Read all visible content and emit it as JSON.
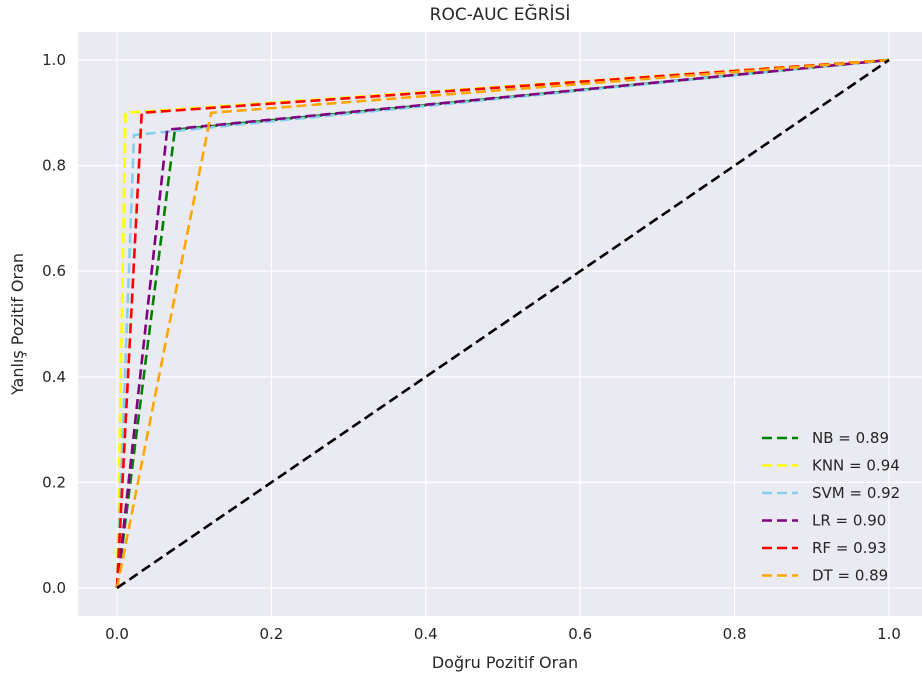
{
  "chart_data": {
    "type": "line",
    "title": "ROC-AUC EĞRİSİ",
    "xlabel": "Doğru Pozitif Oran",
    "ylabel": "Yanlış Pozitif Oran",
    "xlim": [
      -0.05,
      1.05
    ],
    "ylim": [
      -0.05,
      1.05
    ],
    "xticks": [
      0.0,
      0.2,
      0.4,
      0.6,
      0.8,
      1.0
    ],
    "yticks": [
      0.0,
      0.2,
      0.4,
      0.6,
      0.8,
      1.0
    ],
    "xtick_labels": [
      "0.0",
      "0.2",
      "0.4",
      "0.6",
      "0.8",
      "1.0"
    ],
    "ytick_labels": [
      "0.0",
      "0.2",
      "0.4",
      "0.6",
      "0.8",
      "1.0"
    ],
    "grid": true,
    "background": "#eaeaf2",
    "legend_position": "lower-right",
    "series": [
      {
        "name": "NB = 0.89",
        "color": "#008000",
        "x": [
          0.0,
          0.075,
          1.0
        ],
        "y": [
          0.0,
          0.868,
          1.0
        ]
      },
      {
        "name": "KNN = 0.94",
        "color": "#ffff00",
        "x": [
          0.0,
          0.011,
          1.0
        ],
        "y": [
          0.0,
          0.9,
          1.0
        ]
      },
      {
        "name": "SVM = 0.92",
        "color": "#87ceeb",
        "x": [
          0.0,
          0.022,
          1.0
        ],
        "y": [
          0.0,
          0.858,
          1.0
        ]
      },
      {
        "name": "LR = 0.90",
        "color": "#800080",
        "x": [
          0.0,
          0.065,
          1.0
        ],
        "y": [
          0.0,
          0.868,
          1.0
        ]
      },
      {
        "name": "RF = 0.93",
        "color": "#ff0000",
        "x": [
          0.0,
          0.032,
          1.0
        ],
        "y": [
          0.0,
          0.9,
          1.0
        ]
      },
      {
        "name": "DT = 0.89",
        "color": "#ffa500",
        "x": [
          0.0,
          0.122,
          1.0
        ],
        "y": [
          0.0,
          0.9,
          1.0
        ]
      }
    ],
    "reference_line": {
      "color": "#000000",
      "x": [
        0.0,
        1.0
      ],
      "y": [
        0.0,
        1.0
      ]
    }
  }
}
